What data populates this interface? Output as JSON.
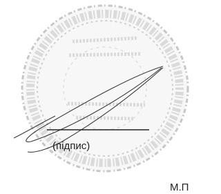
{
  "signature_caption": "(підпис)",
  "seal_label": "М.П"
}
